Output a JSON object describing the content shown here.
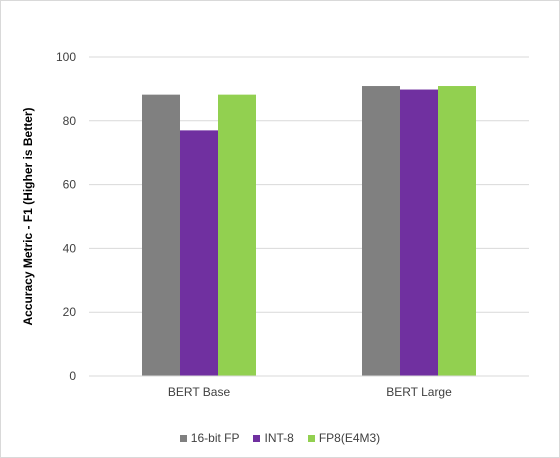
{
  "chart_data": {
    "type": "bar",
    "title": "",
    "xlabel": "",
    "ylabel": "Accuracy Metric - F1 (Higher is Better)",
    "ylim": [
      0,
      100
    ],
    "yticks": [
      0,
      20,
      40,
      60,
      80,
      100
    ],
    "grid": true,
    "legend_position": "bottom",
    "categories": [
      "BERT Base",
      "BERT Large"
    ],
    "series": [
      {
        "name": "16-bit FP",
        "color": "#808080",
        "values": [
          88.2,
          90.9
        ]
      },
      {
        "name": "INT-8",
        "color": "#7030a0",
        "values": [
          77.0,
          89.8
        ]
      },
      {
        "name": "FP8(E4M3)",
        "color": "#92d050",
        "values": [
          88.2,
          90.9
        ]
      }
    ]
  }
}
